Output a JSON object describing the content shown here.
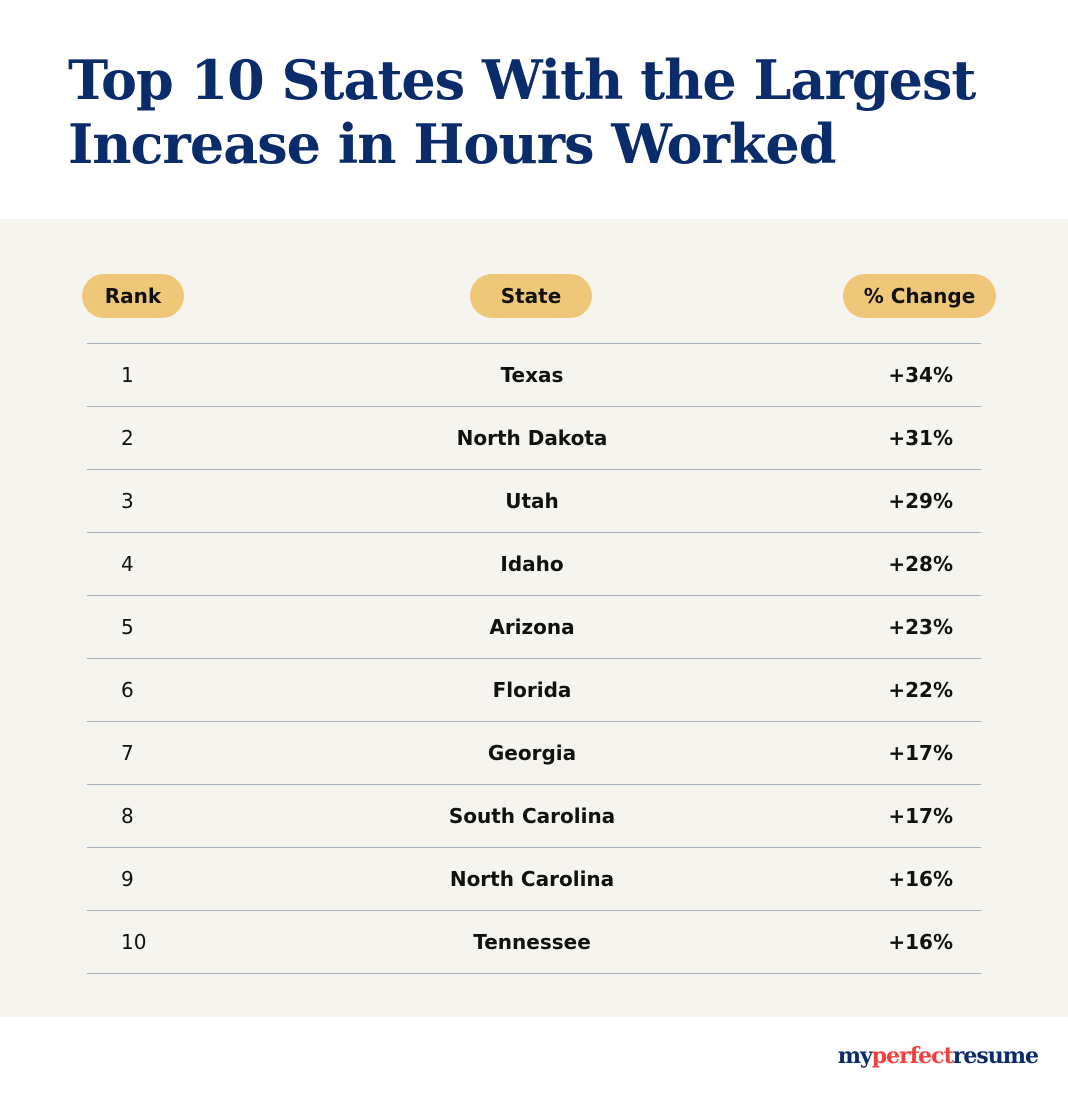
{
  "title": "Top 10 States With the Largest Increase in Hours Worked",
  "headers": {
    "rank": "Rank",
    "state": "State",
    "change": "% Change"
  },
  "rows": [
    {
      "rank": "1",
      "state": "Texas",
      "change": "+34%"
    },
    {
      "rank": "2",
      "state": "North Dakota",
      "change": "+31%"
    },
    {
      "rank": "3",
      "state": "Utah",
      "change": "+29%"
    },
    {
      "rank": "4",
      "state": "Idaho",
      "change": "+28%"
    },
    {
      "rank": "5",
      "state": "Arizona",
      "change": "+23%"
    },
    {
      "rank": "6",
      "state": "Florida",
      "change": "+22%"
    },
    {
      "rank": "7",
      "state": "Georgia",
      "change": "+17%"
    },
    {
      "rank": "8",
      "state": "South Carolina",
      "change": "+17%"
    },
    {
      "rank": "9",
      "state": "North Carolina",
      "change": "+16%"
    },
    {
      "rank": "10",
      "state": "Tennessee",
      "change": "+16%"
    }
  ],
  "logo": {
    "part1": "my",
    "part2": "perfect",
    "part3": "resume"
  },
  "colors": {
    "title": "#0b2c6b",
    "pill": "#efc778",
    "panel": "#f5f4ef",
    "divider": "#a7b1c2",
    "logo_red": "#f0413d"
  },
  "chart_data": {
    "type": "table",
    "title": "Top 10 States With the Largest Increase in Hours Worked",
    "columns": [
      "Rank",
      "State",
      "% Change"
    ],
    "categories": [
      "Texas",
      "North Dakota",
      "Utah",
      "Idaho",
      "Arizona",
      "Florida",
      "Georgia",
      "South Carolina",
      "North Carolina",
      "Tennessee"
    ],
    "ranks": [
      1,
      2,
      3,
      4,
      5,
      6,
      7,
      8,
      9,
      10
    ],
    "values": [
      34,
      31,
      29,
      28,
      23,
      22,
      17,
      17,
      16,
      16
    ],
    "unit": "%"
  }
}
